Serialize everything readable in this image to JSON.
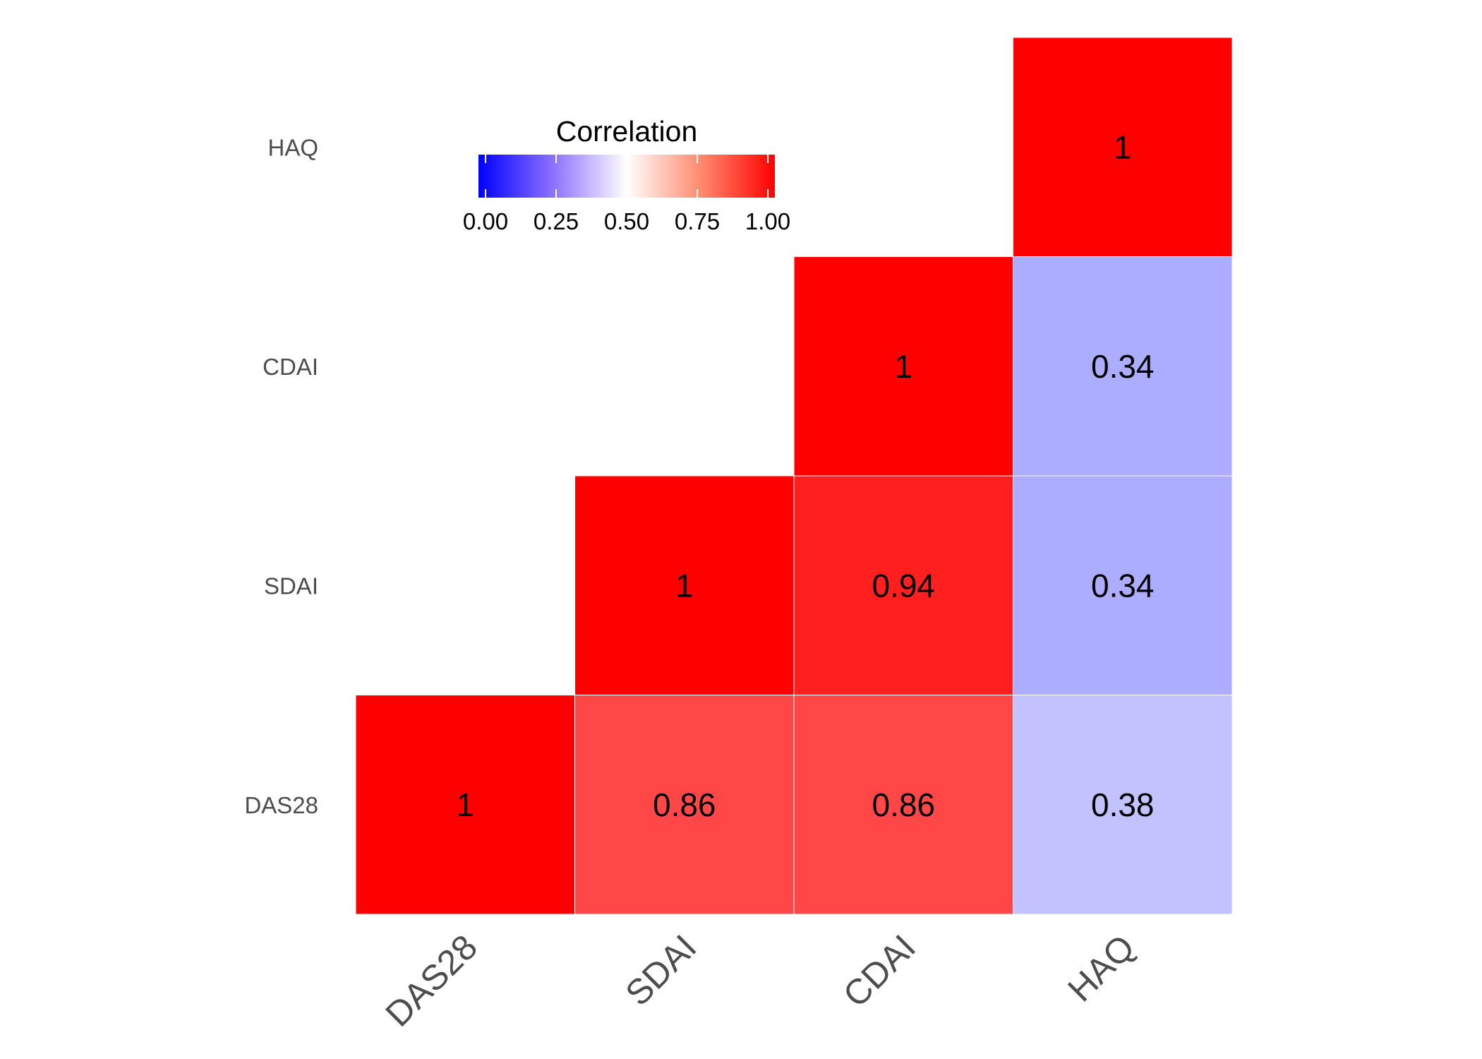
{
  "chart_data": {
    "type": "heatmap",
    "title": "",
    "xlabel": "",
    "ylabel": "",
    "x_categories": [
      "DAS28",
      "SDAI",
      "CDAI",
      "HAQ"
    ],
    "y_categories": [
      "DAS28",
      "SDAI",
      "CDAI",
      "HAQ"
    ],
    "cells": [
      {
        "x": "DAS28",
        "y": "DAS28",
        "value": 1,
        "label": "1"
      },
      {
        "x": "SDAI",
        "y": "DAS28",
        "value": 0.86,
        "label": "0.86"
      },
      {
        "x": "CDAI",
        "y": "DAS28",
        "value": 0.86,
        "label": "0.86"
      },
      {
        "x": "HAQ",
        "y": "DAS28",
        "value": 0.38,
        "label": "0.38"
      },
      {
        "x": "SDAI",
        "y": "SDAI",
        "value": 1,
        "label": "1"
      },
      {
        "x": "CDAI",
        "y": "SDAI",
        "value": 0.94,
        "label": "0.94"
      },
      {
        "x": "HAQ",
        "y": "SDAI",
        "value": 0.34,
        "label": "0.34"
      },
      {
        "x": "CDAI",
        "y": "CDAI",
        "value": 1,
        "label": "1"
      },
      {
        "x": "HAQ",
        "y": "CDAI",
        "value": 0.34,
        "label": "0.34"
      },
      {
        "x": "HAQ",
        "y": "HAQ",
        "value": 1,
        "label": "1"
      }
    ],
    "legend": {
      "title": "Correlation",
      "placement": "top-left",
      "ticks": [
        0,
        0.25,
        0.5,
        0.75,
        1
      ],
      "tick_labels": [
        "0.00",
        "0.25",
        "0.50",
        "0.75",
        "1.00"
      ],
      "range": [
        0,
        1
      ]
    },
    "colors": {
      "low": "#0000ff",
      "mid": "#ffffff",
      "high": "#ff0000",
      "cell_border": "#ffffff"
    },
    "grid": false
  }
}
